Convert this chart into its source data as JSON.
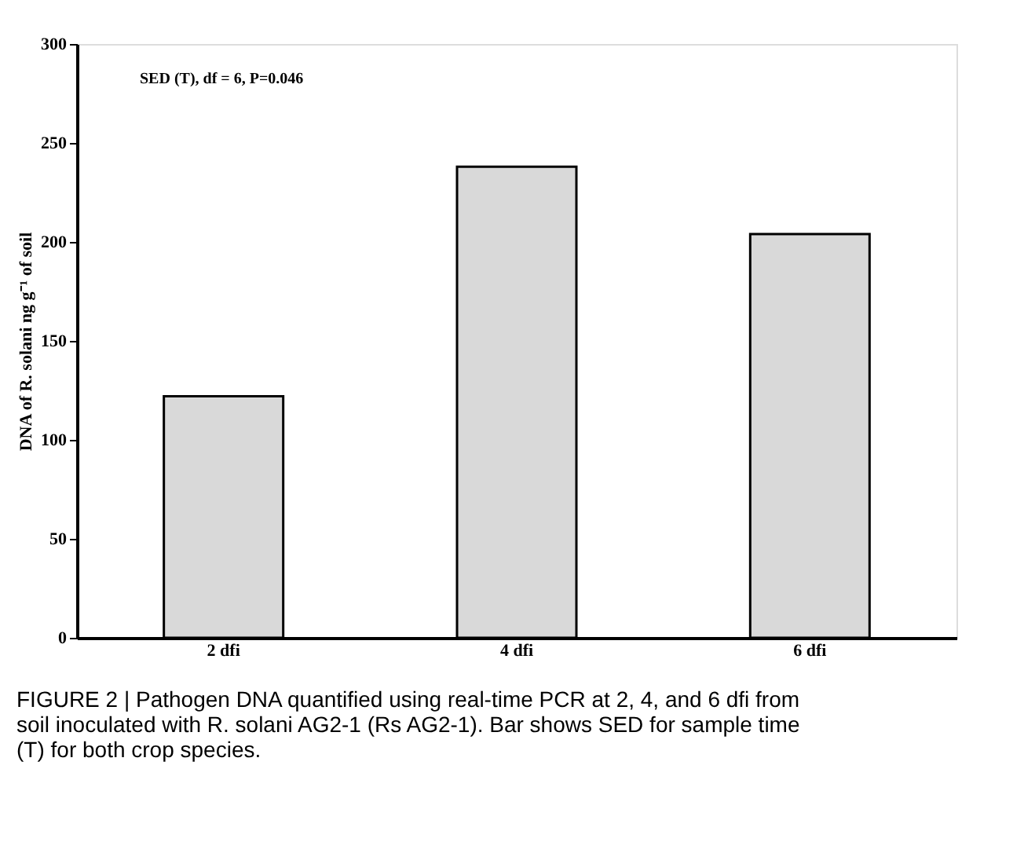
{
  "chart_data": {
    "type": "bar",
    "ylabel": "DNA of R. solani ng g⁻¹ of soil",
    "categories": [
      "2 dfi",
      "4 dfi",
      "6 dfi"
    ],
    "values": [
      122,
      238,
      204
    ],
    "color": "#d9d9d9",
    "ylim": [
      0,
      300
    ],
    "yticks": [
      0,
      50,
      100,
      150,
      200,
      250,
      300
    ],
    "grid": false,
    "annotations": [
      "SED (T), df = 6, P=0.046",
      "FIGURE 2 | Pathogen DNA quantified using real-time PCR at 2, 4, and 6 dfi from soil inoculated with R. solani AG2-1 (Rs AG2-1). Bar shows SED for sample time (T) for both crop species."
    ]
  }
}
